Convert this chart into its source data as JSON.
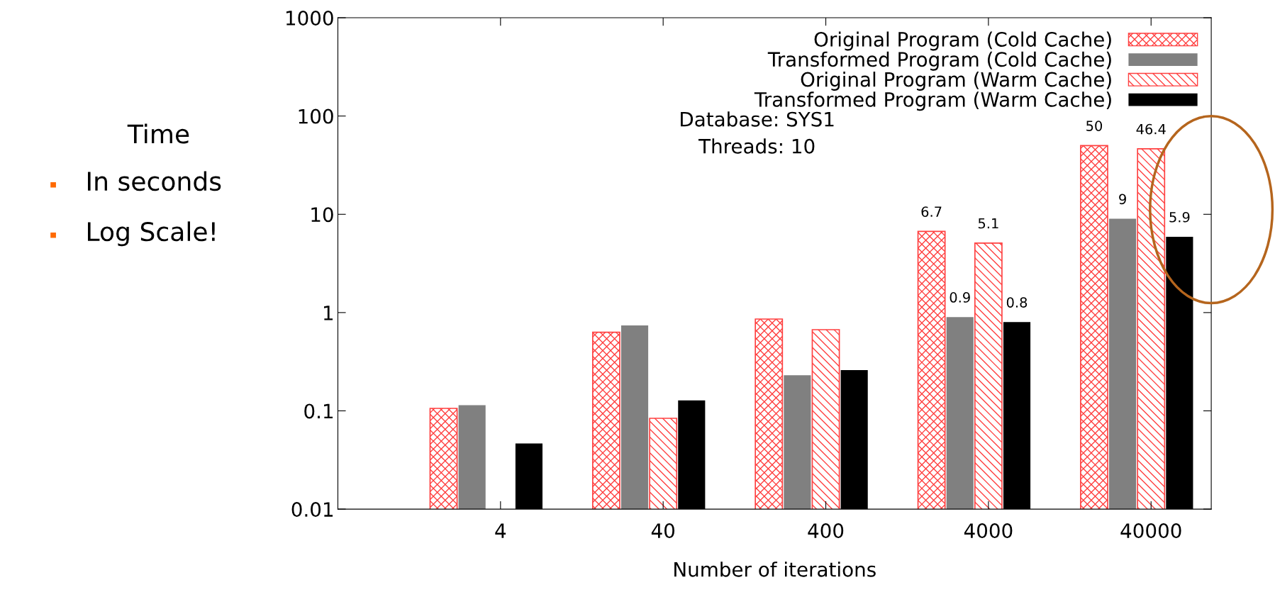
{
  "chart_data": {
    "type": "bar",
    "xlabel": "Number of iterations",
    "categories": [
      "4",
      "40",
      "400",
      "4000",
      "40000"
    ],
    "series": [
      {
        "name": "Original Program (Cold Cache)",
        "color": "#ff4040",
        "values": [
          0.106,
          0.63,
          0.86,
          6.7,
          50
        ],
        "value_labels": [
          null,
          null,
          null,
          "6.7",
          "50"
        ]
      },
      {
        "name": "Transformed Program (Cold Cache)",
        "color": "#808080",
        "values": [
          0.114,
          0.74,
          0.23,
          0.9,
          9
        ],
        "value_labels": [
          null,
          null,
          null,
          "0.9",
          "9"
        ]
      },
      {
        "name": "Original Program (Warm Cache)",
        "color": "#ff4040",
        "values": [
          null,
          0.084,
          0.67,
          5.1,
          46.4
        ],
        "value_labels": [
          null,
          null,
          null,
          "5.1",
          "46.4"
        ]
      },
      {
        "name": "Transformed Program (Warm Cache)",
        "color": "#000000",
        "values": [
          0.0466,
          0.128,
          0.26,
          0.8,
          5.9
        ],
        "value_labels": [
          null,
          null,
          null,
          "0.8",
          "5.9"
        ]
      }
    ],
    "log": true,
    "ylim": [
      0.01,
      1000
    ],
    "yticks": [
      0.01,
      0.1,
      1,
      10,
      100,
      1000
    ],
    "grid": false,
    "legend": "top right",
    "annotations": [
      "Database: SYS1",
      "Threads: 10",
      "Time",
      "In seconds",
      "Log Scale!"
    ]
  }
}
